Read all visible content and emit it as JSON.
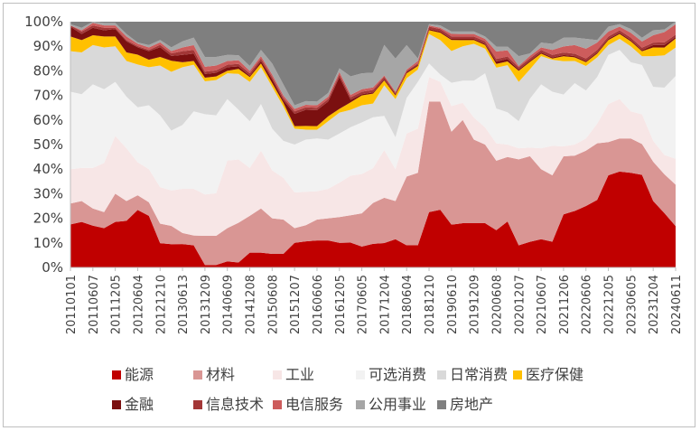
{
  "chart_data": {
    "type": "area",
    "stacked": true,
    "percent": true,
    "ylim": [
      0,
      100
    ],
    "yticks": [
      "0%",
      "10%",
      "20%",
      "30%",
      "40%",
      "50%",
      "60%",
      "70%",
      "80%",
      "90%",
      "100%"
    ],
    "x": [
      "20110101",
      "20110401",
      "20110607",
      "20110901",
      "20111205",
      "20120301",
      "20120604",
      "20120901",
      "20121210",
      "20130301",
      "20130613",
      "20130901",
      "20131209",
      "20140301",
      "20140609",
      "20140901",
      "20141208",
      "20150301",
      "20150608",
      "20150901",
      "20151207",
      "20160301",
      "20160606",
      "20160901",
      "20161205",
      "20170301",
      "20170605",
      "20170901",
      "20171204",
      "20180301",
      "20180604",
      "20180901",
      "20181210",
      "20190301",
      "20190610",
      "20190901",
      "20191209",
      "20200301",
      "20200608",
      "20200901",
      "20201207",
      "20210301",
      "20210607",
      "20210901",
      "20211206",
      "20220301",
      "20220606",
      "20220901",
      "20221205",
      "20230301",
      "20230605",
      "20230901",
      "20231204",
      "20240301",
      "20240611"
    ],
    "xtick_labels": [
      "20110101",
      "20110607",
      "20111205",
      "20120604",
      "20121210",
      "20130613",
      "20131209",
      "20140609",
      "20141208",
      "20150608",
      "20151207",
      "20160606",
      "20161205",
      "20170605",
      "20171204",
      "20180604",
      "20181210",
      "20190610",
      "20191209",
      "20200608",
      "20201207",
      "20210607",
      "20211206",
      "20220606",
      "20221205",
      "20230605",
      "20231204",
      "20240611"
    ],
    "series": [
      {
        "name": "能源",
        "color": "#c00000",
        "values": [
          17.5,
          18.5,
          17,
          16,
          18.5,
          19,
          23.5,
          21,
          10,
          9.5,
          9.5,
          9,
          1,
          1,
          2.5,
          2,
          6,
          6,
          5.5,
          5.5,
          10,
          10.5,
          11,
          11,
          10,
          10,
          8.5,
          9.5,
          10,
          11.5,
          9,
          9,
          22.5,
          23.5,
          17.5,
          18,
          18,
          18,
          15,
          18.5,
          9,
          10.5,
          11.5,
          10.5,
          21.5,
          23,
          25,
          27.5,
          37.5,
          39,
          38.5,
          37.5,
          27,
          21,
          16
        ]
      },
      {
        "name": "材料",
        "color": "#d99694",
        "values": [
          8.5,
          8.5,
          7,
          6.5,
          11.5,
          8,
          6,
          5.5,
          8,
          7.5,
          4.5,
          4,
          12,
          12,
          13.5,
          16,
          15,
          18,
          14.5,
          14,
          6,
          6.5,
          8.5,
          9,
          10.5,
          11,
          13.5,
          16.5,
          18.5,
          15.5,
          28,
          29.5,
          45,
          44,
          38,
          42,
          34,
          32,
          28,
          26,
          35,
          35,
          28.5,
          27,
          23.5,
          22.5,
          22.5,
          23,
          13.5,
          13.5,
          14,
          12.5,
          16,
          15,
          16
        ]
      },
      {
        "name": "工业",
        "color": "#f7e6e6",
        "values": [
          14,
          13.5,
          16.5,
          20,
          23.5,
          21.5,
          13.5,
          13.5,
          15,
          14.5,
          18,
          19,
          17,
          17.5,
          27.5,
          25.5,
          19.5,
          23.5,
          19.5,
          17,
          14.5,
          13.5,
          11.5,
          12,
          14,
          16,
          16,
          14,
          19.5,
          13,
          17.5,
          18,
          10,
          8,
          10.5,
          7,
          9,
          7,
          7,
          5,
          4.5,
          3.5,
          8.5,
          12,
          4,
          4.5,
          5,
          8,
          15.5,
          16,
          11,
          12,
          8.5,
          7.5,
          10
        ]
      },
      {
        "name": "可选消费",
        "color": "#f2f2f2",
        "values": [
          31.5,
          30,
          34,
          30,
          22,
          21,
          22.5,
          26,
          29.5,
          24.5,
          26,
          31.5,
          33,
          32,
          25,
          20,
          19,
          19,
          17,
          15,
          19.5,
          21,
          21.5,
          20,
          20,
          19.5,
          21,
          20.5,
          14,
          13,
          14.5,
          19,
          5.5,
          3,
          9.5,
          9,
          15,
          22,
          14,
          13,
          11,
          20,
          26,
          22,
          21,
          25,
          19.5,
          19,
          20,
          20,
          20,
          20,
          22,
          26,
          32
        ]
      },
      {
        "name": "日常消费",
        "color": "#d9d9d9",
        "values": [
          16.5,
          17,
          16,
          17,
          14.5,
          14.5,
          17.5,
          15.5,
          20.5,
          24,
          23.5,
          19,
          13.5,
          14.5,
          10.5,
          14.5,
          16,
          15,
          17,
          14,
          6.5,
          4,
          3.5,
          7.5,
          8.5,
          7,
          7,
          5.5,
          12.5,
          15.5,
          8,
          5,
          12,
          14,
          13,
          14,
          15,
          10,
          16.5,
          19,
          16,
          12,
          11.5,
          13,
          13.5,
          9,
          10,
          8,
          4,
          4.5,
          6.5,
          3.5,
          12.5,
          12.5,
          11
        ]
      },
      {
        "name": "医疗保健",
        "color": "#ffc000",
        "values": [
          6,
          5,
          4,
          4.5,
          4,
          3.5,
          4,
          3,
          3.5,
          4.5,
          2,
          1.5,
          1.5,
          1.5,
          1,
          2,
          2,
          1.5,
          1.5,
          1.5,
          1,
          1.5,
          1.5,
          2,
          1.5,
          3,
          4,
          4,
          2,
          1.5,
          2,
          1.5,
          1.5,
          3,
          4.5,
          2.5,
          1.5,
          1.5,
          1.5,
          1.5,
          4.5,
          3,
          1,
          0.5,
          2,
          1.5,
          1.5,
          1.5,
          2,
          2,
          2,
          2,
          3.5,
          3,
          3.5
        ]
      },
      {
        "name": "金融",
        "color": "#7b1010",
        "values": [
          4,
          2.5,
          3,
          2.5,
          3,
          4.5,
          3,
          3.5,
          4,
          2,
          3,
          3,
          1.5,
          1.5,
          1.5,
          1,
          0.5,
          1,
          1.5,
          1,
          5,
          6.5,
          6.5,
          6,
          13,
          1,
          0.5,
          0.5,
          0.5,
          0.5,
          0.5,
          0.5,
          0.5,
          0.5,
          0.5,
          0.5,
          0.5,
          0.5,
          1,
          1,
          0.5,
          0.5,
          0.5,
          0.5,
          0.5,
          0.5,
          0.5,
          0.5,
          0.5,
          0.5,
          0.5,
          0.5,
          1,
          1,
          0.5
        ]
      },
      {
        "name": "信息技术",
        "color": "#a33737",
        "values": [
          0.5,
          1,
          1,
          1,
          0.5,
          0.5,
          0.5,
          0.5,
          1,
          1,
          1.5,
          1.5,
          1,
          1,
          1,
          1,
          1,
          1,
          1,
          1,
          1,
          1,
          1,
          1,
          1,
          1,
          1,
          1,
          1,
          0.5,
          0.5,
          0.5,
          1,
          1,
          1,
          1,
          1,
          1,
          1,
          1,
          1,
          1,
          1,
          1,
          1,
          1,
          1,
          1,
          1,
          1,
          1,
          1,
          1,
          1,
          1
        ]
      },
      {
        "name": "电信服务",
        "color": "#cd5c5c",
        "values": [
          0,
          0.5,
          1,
          1,
          1,
          1.5,
          1,
          1,
          1,
          1,
          1.5,
          2,
          2,
          2,
          1.5,
          1.5,
          1,
          1,
          1,
          1,
          1,
          1,
          1,
          1,
          1,
          1,
          1,
          1,
          0.5,
          0.5,
          0.5,
          1,
          0.5,
          0.5,
          1,
          1,
          1,
          1,
          3,
          2.5,
          0.5,
          1,
          1,
          2,
          2.5,
          3.5,
          4,
          3,
          2,
          1.5,
          2,
          2.5,
          3,
          4,
          4
        ]
      },
      {
        "name": "公用事业",
        "color": "#a6a6a6",
        "values": [
          0.5,
          1,
          0.5,
          1,
          1,
          1,
          0.5,
          1,
          1,
          1.5,
          2.5,
          3,
          4,
          3.5,
          2.5,
          2,
          2,
          2.5,
          4.5,
          4.5,
          1.5,
          1.5,
          1.5,
          1.5,
          1.5,
          7.5,
          6.5,
          6,
          12.5,
          13.5,
          10,
          1,
          0.5,
          1,
          1,
          1,
          1,
          1,
          2,
          1.5,
          4,
          1,
          2,
          2.5,
          3.5,
          3,
          4,
          1,
          2,
          1,
          1.5,
          1.5,
          2,
          1,
          1
        ]
      },
      {
        "name": "房地产",
        "color": "#7f7f7f",
        "values": [
          1,
          2.5,
          0,
          0.5,
          0.5,
          5,
          8.5,
          9.5,
          7.5,
          10.5,
          8,
          6.5,
          14.5,
          14.5,
          13.5,
          13.5,
          18,
          11.5,
          17,
          25.5,
          34,
          32,
          32.5,
          29,
          19,
          22,
          21,
          20.5,
          9.5,
          15,
          9.5,
          15,
          1,
          1.5,
          4,
          4,
          4,
          6,
          10,
          10,
          14,
          13,
          8.5,
          9,
          6.5,
          6.5,
          7,
          7.5,
          2,
          1,
          3,
          6.5,
          3.5,
          3,
          0
        ]
      }
    ]
  }
}
